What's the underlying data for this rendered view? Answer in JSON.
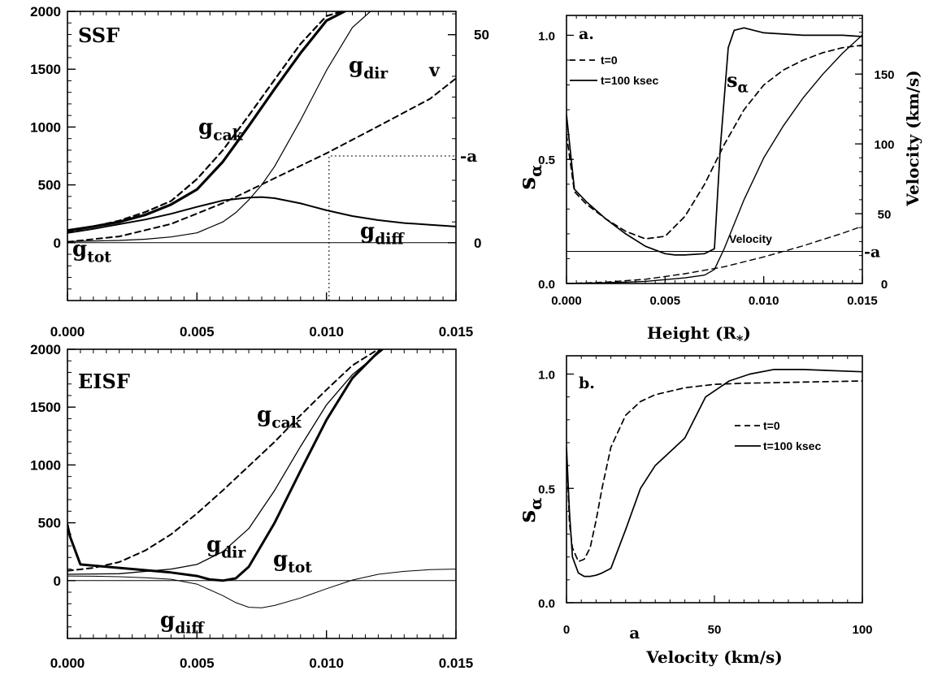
{
  "chart_data": [
    {
      "id": "ssf",
      "type": "line",
      "panel_label": "SSF",
      "xlim": [
        0,
        0.015
      ],
      "ylim": [
        -500,
        2000
      ],
      "x_ticks": [
        "0.000",
        "0.005",
        "0.010",
        "0.015"
      ],
      "y_ticks": [
        "0",
        "500",
        "1000",
        "1500",
        "2000"
      ],
      "right_ticks": [
        {
          "label": "0",
          "value": 0
        },
        {
          "label": "50",
          "value": 50
        }
      ],
      "right_scale": {
        "ylim": [
          -13.9,
          55.6
        ]
      },
      "marker_label": "a",
      "marker": {
        "x": 0.0101,
        "y": 750
      },
      "series": [
        {
          "name": "g_cak",
          "sub": "cak",
          "style": "dashed",
          "width": 2.2,
          "x": [
            0,
            0.001,
            0.002,
            0.003,
            0.004,
            0.005,
            0.006,
            0.007,
            0.008,
            0.009,
            0.01,
            0.0106
          ],
          "y": [
            95,
            140,
            190,
            265,
            360,
            550,
            800,
            1100,
            1410,
            1720,
            1960,
            2000
          ]
        },
        {
          "name": "g_tot",
          "sub": "tot",
          "style": "solid",
          "width": 3.2,
          "x": [
            0,
            0.001,
            0.002,
            0.003,
            0.004,
            0.005,
            0.006,
            0.007,
            0.008,
            0.009,
            0.01,
            0.0107
          ],
          "y": [
            105,
            140,
            180,
            240,
            330,
            460,
            700,
            1010,
            1330,
            1640,
            1920,
            2000
          ]
        },
        {
          "name": "g_dir",
          "sub": "dir",
          "style": "solid",
          "width": 1.2,
          "x": [
            0,
            0.002,
            0.003,
            0.004,
            0.005,
            0.006,
            0.0065,
            0.007,
            0.0075,
            0.008,
            0.009,
            0.01,
            0.011,
            0.0117
          ],
          "y": [
            10,
            20,
            30,
            50,
            85,
            180,
            260,
            370,
            500,
            660,
            1060,
            1490,
            1860,
            2000
          ]
        },
        {
          "name": "g_diff",
          "sub": "diff",
          "style": "solid",
          "width": 2.0,
          "x": [
            0,
            0.001,
            0.002,
            0.003,
            0.004,
            0.005,
            0.006,
            0.007,
            0.0075,
            0.008,
            0.009,
            0.01,
            0.011,
            0.012,
            0.013,
            0.014,
            0.015
          ],
          "y": [
            85,
            120,
            160,
            200,
            250,
            310,
            365,
            390,
            395,
            385,
            340,
            280,
            230,
            195,
            170,
            155,
            140
          ]
        },
        {
          "name": "v",
          "sub": "",
          "style": "dashed",
          "width": 2.0,
          "x": [
            0,
            0.002,
            0.004,
            0.006,
            0.008,
            0.01,
            0.012,
            0.014,
            0.015
          ],
          "y": [
            0.2,
            1.5,
            4.5,
            9.5,
            15.5,
            21.5,
            28,
            34.6,
            39.5
          ],
          "axis": "right"
        },
        {
          "name": "baseline",
          "sub": "",
          "style": "solid",
          "width": 1.0,
          "x": [
            0,
            0.015
          ],
          "y": [
            0,
            0
          ]
        }
      ]
    },
    {
      "id": "eisf",
      "type": "line",
      "panel_label": "EISF",
      "xlim": [
        0,
        0.015
      ],
      "ylim": [
        -500,
        2000
      ],
      "x_ticks": [
        "0.000",
        "0.005",
        "0.010",
        "0.015"
      ],
      "y_ticks": [
        "0",
        "500",
        "1000",
        "1500",
        "2000"
      ],
      "series": [
        {
          "name": "g_cak",
          "sub": "cak",
          "style": "dashed",
          "width": 2.0,
          "x": [
            0,
            0.001,
            0.002,
            0.003,
            0.004,
            0.005,
            0.006,
            0.007,
            0.008,
            0.009,
            0.01,
            0.011,
            0.012
          ],
          "y": [
            85,
            110,
            160,
            260,
            400,
            580,
            780,
            990,
            1200,
            1430,
            1650,
            1860,
            2000
          ]
        },
        {
          "name": "g_tot",
          "sub": "tot",
          "style": "solid",
          "width": 3.0,
          "x": [
            0,
            0.0001,
            0.0005,
            0.002,
            0.004,
            0.005,
            0.0055,
            0.006,
            0.0065,
            0.007,
            0.008,
            0.009,
            0.01,
            0.011,
            0.0121
          ],
          "y": [
            480,
            380,
            140,
            110,
            70,
            40,
            10,
            0,
            20,
            120,
            500,
            950,
            1390,
            1750,
            2000
          ]
        },
        {
          "name": "g_dir",
          "sub": "dir",
          "style": "solid",
          "width": 1.3,
          "x": [
            0,
            0.002,
            0.004,
            0.005,
            0.006,
            0.007,
            0.008,
            0.009,
            0.01,
            0.011,
            0.0122
          ],
          "y": [
            55,
            60,
            100,
            140,
            250,
            450,
            780,
            1160,
            1520,
            1780,
            2000
          ]
        },
        {
          "name": "g_diff",
          "sub": "diff",
          "style": "solid",
          "width": 1.0,
          "x": [
            0,
            0.001,
            0.002,
            0.003,
            0.004,
            0.005,
            0.006,
            0.0065,
            0.007,
            0.0075,
            0.008,
            0.009,
            0.01,
            0.011,
            0.012,
            0.013,
            0.014,
            0.015
          ],
          "y": [
            40,
            38,
            34,
            25,
            12,
            -30,
            -130,
            -190,
            -230,
            -235,
            -215,
            -150,
            -70,
            5,
            55,
            80,
            95,
            100
          ]
        },
        {
          "name": "baseline",
          "sub": "",
          "style": "solid",
          "width": 1.0,
          "x": [
            0,
            0.015
          ],
          "y": [
            0,
            0
          ]
        }
      ]
    },
    {
      "id": "a",
      "type": "line",
      "panel_label": "a.",
      "xlabel_main": "Height (R",
      "xlabel_sub": "*",
      "xlabel_close": ")",
      "ylabel_main": "s",
      "ylabel_sub": "α",
      "right_ylabel": "Velocity (km/s)",
      "xlim": [
        0,
        0.015
      ],
      "ylim": [
        0,
        1.08
      ],
      "x_ticks": [
        "0.000",
        "0.005",
        "0.010",
        "0.015"
      ],
      "y_ticks": [
        "0.0",
        "0.5",
        "1.0"
      ],
      "right_ticks": [
        "0",
        "50",
        "100",
        "150"
      ],
      "right_scale": {
        "ylim": [
          0,
          192
        ]
      },
      "marker_label": "a",
      "marker_right_value": 23,
      "curve_label_main": "s",
      "curve_label_sub": "α",
      "velocity_label": "Velocity",
      "legend": [
        {
          "label": "t=0",
          "style": "dashed"
        },
        {
          "label": "t=100 ksec",
          "style": "solid"
        }
      ],
      "series": [
        {
          "name": "t=0",
          "style": "dashed",
          "width": 1.7,
          "x": [
            0,
            0.0004,
            0.001,
            0.002,
            0.003,
            0.004,
            0.005,
            0.006,
            0.007,
            0.008,
            0.009,
            0.01,
            0.011,
            0.012,
            0.013,
            0.014,
            0.015
          ],
          "y": [
            0.6,
            0.37,
            0.32,
            0.26,
            0.21,
            0.18,
            0.19,
            0.27,
            0.4,
            0.56,
            0.7,
            0.8,
            0.86,
            0.9,
            0.93,
            0.95,
            0.96
          ]
        },
        {
          "name": "t=100 ksec",
          "style": "solid",
          "width": 1.7,
          "x": [
            0,
            0.0004,
            0.001,
            0.002,
            0.003,
            0.004,
            0.005,
            0.0055,
            0.006,
            0.007,
            0.0075,
            0.0078,
            0.0082,
            0.0085,
            0.009,
            0.01,
            0.011,
            0.012,
            0.013,
            0.014,
            0.015
          ],
          "y": [
            0.68,
            0.38,
            0.33,
            0.26,
            0.2,
            0.15,
            0.12,
            0.115,
            0.115,
            0.12,
            0.14,
            0.55,
            0.95,
            1.02,
            1.03,
            1.01,
            1.005,
            1.0,
            1.0,
            1.0,
            0.995
          ]
        },
        {
          "name": "velocity t=0",
          "style": "dashed",
          "width": 1.4,
          "x": [
            0,
            0.002,
            0.004,
            0.006,
            0.008,
            0.01,
            0.012,
            0.014,
            0.015
          ],
          "y": [
            0,
            1,
            3,
            7,
            12,
            19,
            27,
            36,
            41
          ],
          "axis": "right"
        },
        {
          "name": "velocity t=100 ksec",
          "style": "solid",
          "width": 1.4,
          "x": [
            0,
            0.002,
            0.004,
            0.006,
            0.007,
            0.0075,
            0.008,
            0.009,
            0.01,
            0.011,
            0.012,
            0.013,
            0.014,
            0.015
          ],
          "y": [
            0,
            0.5,
            1.5,
            4,
            6,
            10,
            25,
            60,
            90,
            113,
            133,
            150,
            165,
            178
          ],
          "axis": "right"
        },
        {
          "name": "a-level",
          "style": "solid",
          "width": 1.0,
          "x": [
            0,
            0.015
          ],
          "y": [
            23,
            23
          ],
          "axis": "right"
        }
      ]
    },
    {
      "id": "b",
      "type": "line",
      "panel_label": "b.",
      "xlabel": "Velocity (km/s)",
      "ylabel_main": "s",
      "ylabel_sub": "α",
      "xlim": [
        0,
        100
      ],
      "ylim": [
        0,
        1.08
      ],
      "x_ticks": [
        "0",
        "50",
        "100"
      ],
      "y_ticks": [
        "0.0",
        "0.5",
        "1.0"
      ],
      "marker_label": "a",
      "marker_x": 23,
      "legend": [
        {
          "label": "t=0",
          "style": "dashed"
        },
        {
          "label": "t=100 ksec",
          "style": "solid"
        }
      ],
      "series": [
        {
          "name": "t=0",
          "style": "dashed",
          "width": 1.7,
          "x": [
            0,
            1,
            2,
            4,
            6,
            8,
            10,
            12,
            15,
            20,
            25,
            30,
            40,
            50,
            60,
            80,
            100
          ],
          "y": [
            0.68,
            0.35,
            0.24,
            0.18,
            0.19,
            0.24,
            0.36,
            0.5,
            0.68,
            0.82,
            0.88,
            0.91,
            0.94,
            0.955,
            0.96,
            0.965,
            0.97
          ]
        },
        {
          "name": "t=100 ksec",
          "style": "solid",
          "width": 1.7,
          "x": [
            0,
            1,
            2,
            4,
            6,
            8,
            10,
            12,
            15,
            20,
            25,
            30,
            35,
            40,
            47,
            55,
            62,
            70,
            80,
            100
          ],
          "y": [
            0.68,
            0.4,
            0.2,
            0.13,
            0.115,
            0.115,
            0.12,
            0.13,
            0.15,
            0.32,
            0.5,
            0.6,
            0.66,
            0.72,
            0.9,
            0.97,
            1.0,
            1.02,
            1.02,
            1.01
          ]
        }
      ]
    }
  ]
}
